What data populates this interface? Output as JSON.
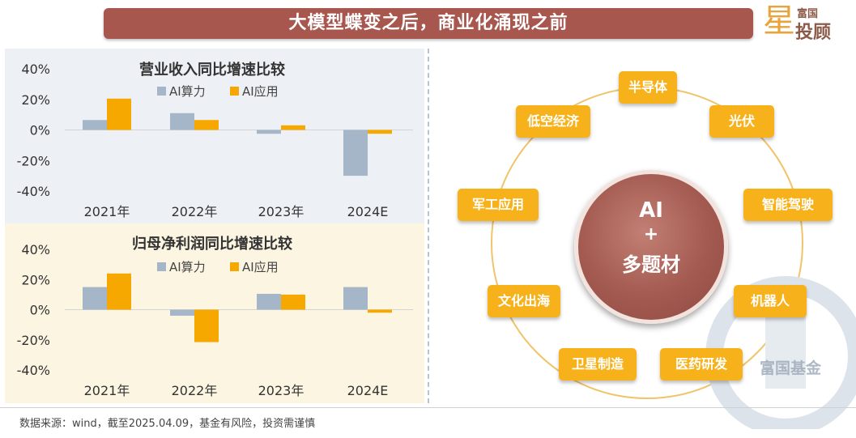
{
  "header": {
    "title": "大模型蝶变之后，商业化涌现之前"
  },
  "brand": {
    "line1": "富国",
    "line2": "投顾",
    "star": "星",
    "watermark": "富国基金"
  },
  "legend": {
    "compute": "AI算力",
    "application": "AI应用"
  },
  "colors": {
    "compute": "#a6b6c9",
    "application": "#f6a800",
    "accent": "#f7b21b",
    "title_bg": "#a8574f"
  },
  "chart_data": [
    {
      "type": "bar",
      "title": "营业收入同比增速比较",
      "categories": [
        "2021年",
        "2022年",
        "2023年",
        "2024E"
      ],
      "series": [
        {
          "name": "AI算力",
          "values": [
            6.5,
            11,
            -2.5,
            -30
          ]
        },
        {
          "name": "AI应用",
          "values": [
            20.5,
            6.5,
            3,
            -2.5
          ]
        }
      ],
      "yticks": [
        "40%",
        "20%",
        "0%",
        "-20%",
        "-40%"
      ],
      "ylim": [
        -40,
        40
      ],
      "legend": "top-center"
    },
    {
      "type": "bar",
      "title": "归母净利润同比增速比较",
      "categories": [
        "2021年",
        "2022年",
        "2023年",
        "2024E"
      ],
      "series": [
        {
          "name": "AI算力",
          "values": [
            15,
            -4,
            10.5,
            15
          ]
        },
        {
          "name": "AI应用",
          "values": [
            24,
            -21.5,
            10,
            -2
          ]
        }
      ],
      "yticks": [
        "40%",
        "20%",
        "0%",
        "-20%",
        "-40%"
      ],
      "ylim": [
        -40,
        40
      ],
      "legend": "top-center"
    }
  ],
  "diagram": {
    "center_line1": "AI",
    "center_line2": "+",
    "center_line3": "多题材",
    "nodes": [
      "半导体",
      "光伏",
      "智能驾驶",
      "机器人",
      "医药研发",
      "卫星制造",
      "文化出海",
      "军工应用",
      "低空经济"
    ]
  },
  "footnote": "数据来源：wind，截至2025.04.09，基金有风险，投资需谨慎"
}
